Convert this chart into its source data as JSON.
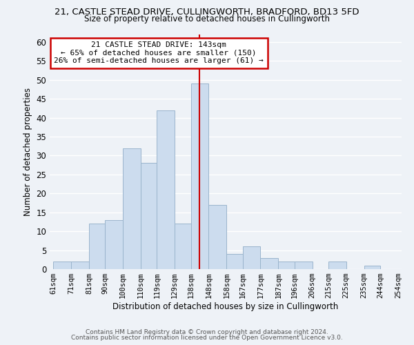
{
  "title_line1": "21, CASTLE STEAD DRIVE, CULLINGWORTH, BRADFORD, BD13 5FD",
  "title_line2": "Size of property relative to detached houses in Cullingworth",
  "xlabel": "Distribution of detached houses by size in Cullingworth",
  "ylabel": "Number of detached properties",
  "bar_edges": [
    61,
    71,
    81,
    90,
    100,
    110,
    119,
    129,
    138,
    148,
    158,
    167,
    177,
    187,
    196,
    206,
    215,
    225,
    235,
    244,
    254
  ],
  "bar_heights": [
    2,
    2,
    12,
    13,
    32,
    28,
    42,
    12,
    49,
    17,
    4,
    6,
    3,
    2,
    2,
    0,
    2,
    0,
    1,
    0
  ],
  "bar_color": "#ccdcee",
  "bar_edgecolor": "#9ab4cc",
  "vline_x": 143,
  "vline_color": "#cc0000",
  "annotation_title": "21 CASTLE STEAD DRIVE: 143sqm",
  "annotation_line2": "← 65% of detached houses are smaller (150)",
  "annotation_line3": "26% of semi-detached houses are larger (61) →",
  "annotation_box_facecolor": "#ffffff",
  "annotation_box_edgecolor": "#cc0000",
  "ylim": [
    0,
    62
  ],
  "yticks": [
    0,
    5,
    10,
    15,
    20,
    25,
    30,
    35,
    40,
    45,
    50,
    55,
    60
  ],
  "tick_labels": [
    "61sqm",
    "71sqm",
    "81sqm",
    "90sqm",
    "100sqm",
    "110sqm",
    "119sqm",
    "129sqm",
    "138sqm",
    "148sqm",
    "158sqm",
    "167sqm",
    "177sqm",
    "187sqm",
    "196sqm",
    "206sqm",
    "215sqm",
    "225sqm",
    "235sqm",
    "244sqm",
    "254sqm"
  ],
  "footer1": "Contains HM Land Registry data © Crown copyright and database right 2024.",
  "footer2": "Contains public sector information licensed under the Open Government Licence v3.0.",
  "background_color": "#eef2f7",
  "grid_color": "#ffffff"
}
